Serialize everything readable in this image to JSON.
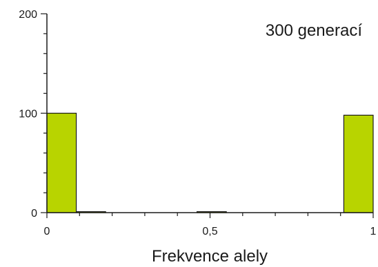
{
  "chart_data": {
    "type": "bar",
    "title": "",
    "annotation": "300 generací",
    "xlabel": "Frekvence alely",
    "ylabel": "",
    "xlim": [
      0,
      1
    ],
    "ylim": [
      0,
      200
    ],
    "x_ticks": [
      {
        "value": 0,
        "label": "0"
      },
      {
        "value": 0.5,
        "label": "0,5"
      },
      {
        "value": 1,
        "label": "1"
      }
    ],
    "y_ticks": [
      {
        "value": 0,
        "label": "0"
      },
      {
        "value": 100,
        "label": "100"
      },
      {
        "value": 200,
        "label": "200"
      }
    ],
    "y_minor_step": 20,
    "x_minor_step": 0.1,
    "bin_width": 0.09,
    "bars": [
      {
        "x0": 0.0,
        "value": 100,
        "color": "#b8d400"
      },
      {
        "x0": 0.09,
        "value": 1,
        "color": "#b8d400"
      },
      {
        "x0": 0.46,
        "value": 1,
        "color": "#b8d400"
      },
      {
        "x0": 0.91,
        "value": 98,
        "color": "#b8d400"
      }
    ],
    "grid": false,
    "legend": "none"
  }
}
